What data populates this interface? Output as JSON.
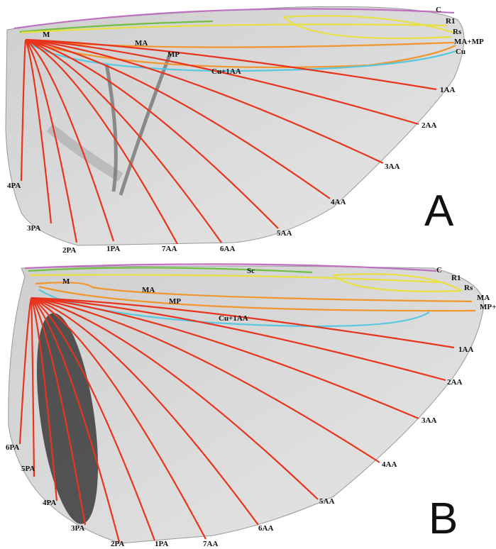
{
  "panels": [
    {
      "label": "A",
      "veins": [
        "C",
        "R1",
        "Rs",
        "MA+MP",
        "Cu",
        "M",
        "MA",
        "MP",
        "Cu+1AA",
        "1AA",
        "2AA",
        "3AA",
        "4AA",
        "5AA",
        "6AA",
        "7AA",
        "1PA",
        "2PA",
        "3PA",
        "4PA"
      ]
    },
    {
      "label": "B",
      "veins": [
        "C",
        "R1",
        "Rs",
        "MA",
        "MP+Cu",
        "Sc",
        "M",
        "MA",
        "MP",
        "Cu+1AA",
        "1AA",
        "2AA",
        "3AA",
        "4AA",
        "5AA",
        "6AA",
        "7AA",
        "1PA",
        "2PA",
        "3PA",
        "4PA",
        "5PA",
        "6PA"
      ]
    }
  ]
}
